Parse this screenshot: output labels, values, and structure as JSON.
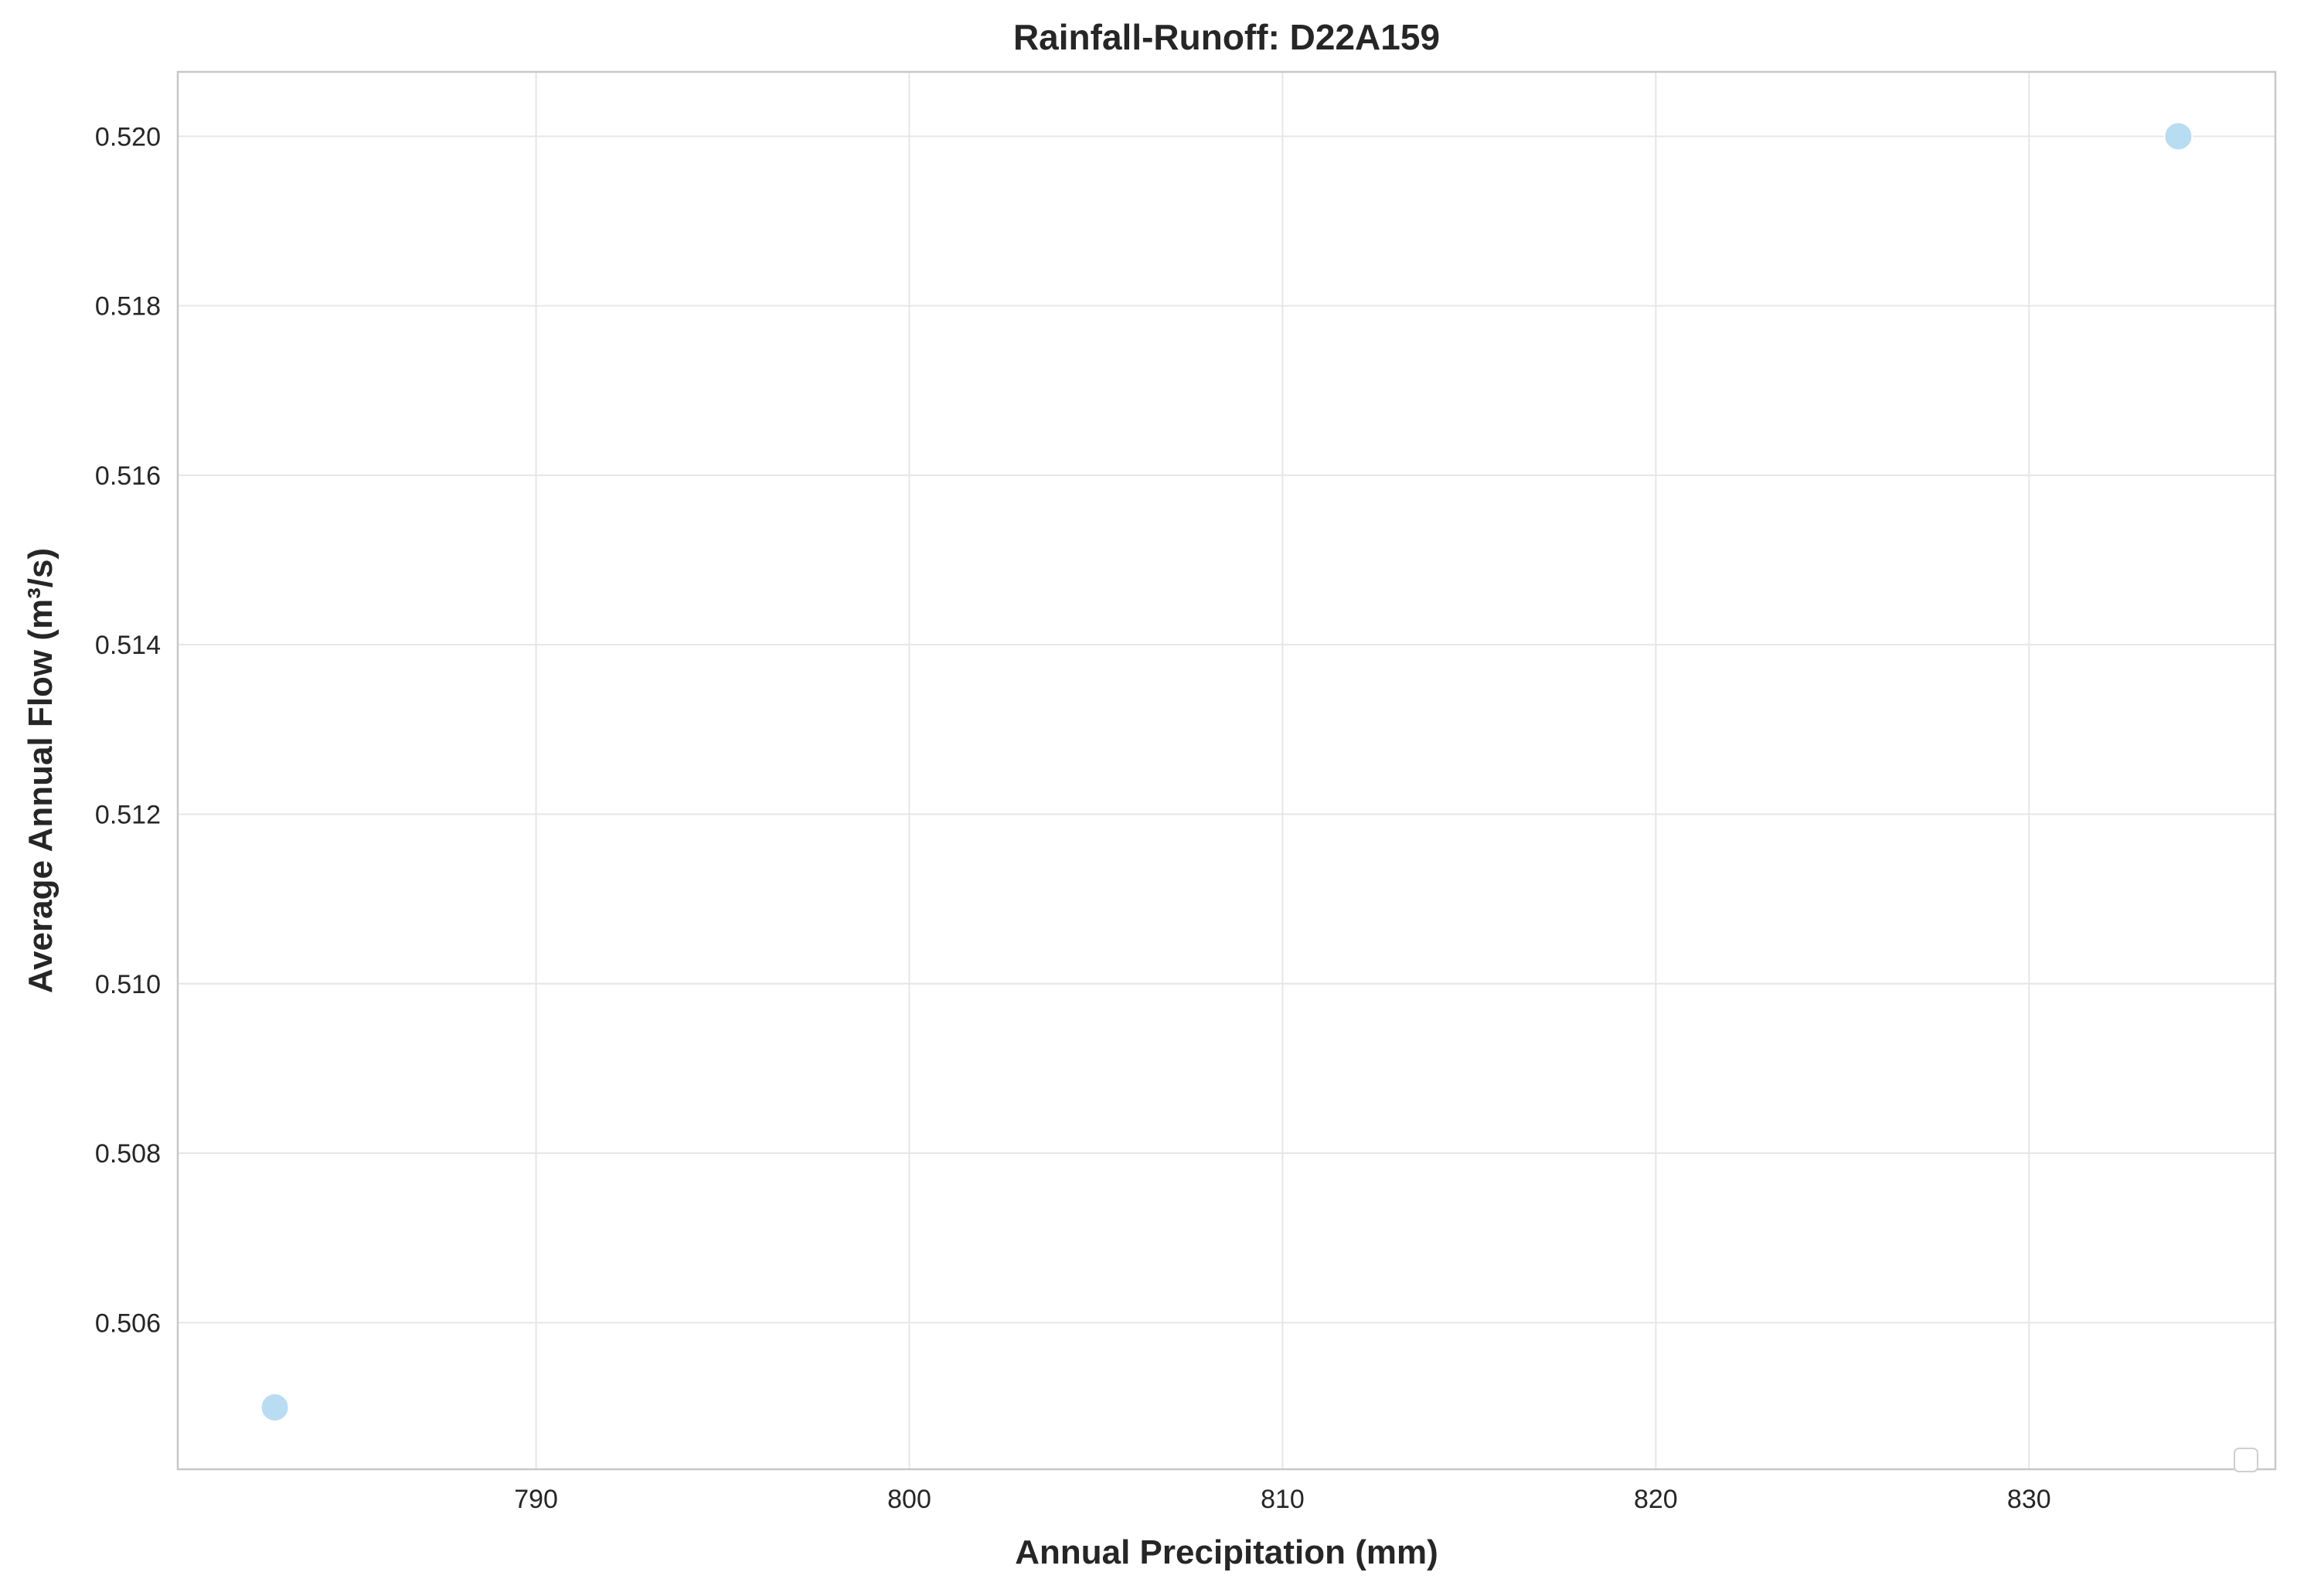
{
  "chart_data": {
    "type": "scatter",
    "title": "Rainfall-Runoff: D22A159",
    "xlabel": "Annual Precipitation (mm)",
    "ylabel": "Average Annual Flow (m³/s)",
    "xlim": [
      780.4,
      836.6
    ],
    "ylim": [
      0.50427,
      0.52076
    ],
    "x_ticks": [
      790,
      800,
      810,
      820,
      830
    ],
    "y_ticks": [
      0.506,
      0.508,
      0.51,
      0.512,
      0.514,
      0.516,
      0.518,
      0.52
    ],
    "x_tick_labels": [
      "790",
      "800",
      "810",
      "820",
      "830"
    ],
    "y_tick_labels": [
      "0.506",
      "0.508",
      "0.510",
      "0.512",
      "0.514",
      "0.516",
      "0.518",
      "0.520"
    ],
    "grid": true,
    "legend": "lower-right (empty)",
    "marker_color": "#b8dcf2",
    "points": [
      {
        "x": 783.0,
        "y": 0.505
      },
      {
        "x": 834.0,
        "y": 0.52
      }
    ]
  }
}
